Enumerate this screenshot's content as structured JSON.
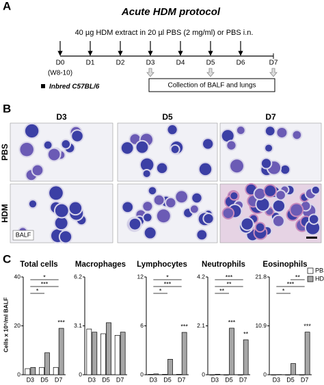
{
  "panels": {
    "a": "A",
    "b": "B",
    "c": "C"
  },
  "protocol": {
    "title": "Acute HDM protocol",
    "treatment": "40 µg HDM extract in 20 µl PBS (2 mg/ml) or PBS i.n.",
    "days": [
      "D0",
      "D1",
      "D2",
      "D3",
      "D4",
      "D5",
      "D6",
      "D7"
    ],
    "age": "(W8-10)",
    "strain": "Inbred C57BL/6",
    "collection": "Collection of BALF and lungs"
  },
  "micrographs": {
    "columns": [
      "D3",
      "D5",
      "D7"
    ],
    "rows": [
      "PBS",
      "HDM"
    ],
    "sample": "BALF"
  },
  "chart_y_label": "Cells x 10⁵/ml BALF",
  "chart_data": [
    {
      "type": "bar",
      "title": "Total cells",
      "categories": [
        "D3",
        "D5",
        "D7"
      ],
      "series": [
        {
          "name": "PBS",
          "color": "#ffffff",
          "values": [
            2.5,
            3,
            3
          ]
        },
        {
          "name": "HDM",
          "color": "#a6a6a6",
          "values": [
            3,
            9,
            19
          ]
        }
      ],
      "ylim": [
        0,
        40
      ],
      "yticks": [
        0,
        20,
        40
      ],
      "annotations": [
        {
          "label": "*",
          "from": "D3",
          "to": "D7"
        },
        {
          "label": "***",
          "from": "D3",
          "to": "D7"
        },
        {
          "label": "*",
          "from": "D3",
          "to": "D5"
        },
        {
          "label": "***",
          "on": "D7"
        }
      ]
    },
    {
      "type": "bar",
      "title": "Macrophages",
      "categories": [
        "D3",
        "D5",
        "D7"
      ],
      "series": [
        {
          "name": "PBS",
          "color": "#ffffff",
          "values": [
            2.9,
            2.6,
            2.5
          ]
        },
        {
          "name": "HDM",
          "color": "#a6a6a6",
          "values": [
            2.7,
            3.3,
            2.7
          ]
        }
      ],
      "ylim": [
        0,
        6.2
      ],
      "yticks": [
        0,
        3.1,
        6.2
      ],
      "annotations": []
    },
    {
      "type": "bar",
      "title": "Lymphocytes",
      "categories": [
        "D3",
        "D5",
        "D7"
      ],
      "series": [
        {
          "name": "PBS",
          "color": "#ffffff",
          "values": [
            0.05,
            0.05,
            0.05
          ]
        },
        {
          "name": "HDM",
          "color": "#a6a6a6",
          "values": [
            0.1,
            1.9,
            5.2
          ]
        }
      ],
      "ylim": [
        0,
        12
      ],
      "yticks": [
        0,
        6,
        12
      ],
      "annotations": [
        {
          "label": "*",
          "from": "D3",
          "to": "D7"
        },
        {
          "label": "***",
          "from": "D3",
          "to": "D7"
        },
        {
          "label": "*",
          "from": "D3",
          "to": "D5"
        },
        {
          "label": "***",
          "on": "D7"
        }
      ]
    },
    {
      "type": "bar",
      "title": "Neutrophils",
      "categories": [
        "D3",
        "D5",
        "D7"
      ],
      "series": [
        {
          "name": "PBS",
          "color": "#ffffff",
          "values": [
            0,
            0,
            0
          ]
        },
        {
          "name": "HDM",
          "color": "#a6a6a6",
          "values": [
            0.02,
            2,
            1.5
          ]
        }
      ],
      "ylim": [
        0,
        4.2
      ],
      "yticks": [
        0,
        2.1,
        4.2
      ],
      "annotations": [
        {
          "label": "***",
          "from": "D3",
          "to": "D7"
        },
        {
          "label": "**",
          "from": "D3",
          "to": "D7"
        },
        {
          "label": "**",
          "from": "D3",
          "to": "D5"
        },
        {
          "label": "***",
          "on": "D5"
        },
        {
          "label": "**",
          "on": "D7"
        }
      ]
    },
    {
      "type": "bar",
      "title": "Eosinophils",
      "categories": [
        "D3",
        "D5",
        "D7"
      ],
      "series": [
        {
          "name": "PBS",
          "color": "#ffffff",
          "values": [
            0,
            0,
            0
          ]
        },
        {
          "name": "HDM",
          "color": "#a6a6a6",
          "values": [
            0.05,
            2.5,
            9.5
          ]
        }
      ],
      "ylim": [
        0,
        21.8
      ],
      "yticks": [
        0,
        10.9,
        21.8
      ],
      "legend": "upper right",
      "annotations": [
        {
          "label": "**",
          "from": "D5",
          "to": "D7"
        },
        {
          "label": "***",
          "from": "D3",
          "to": "D7"
        },
        {
          "label": "*",
          "from": "D3",
          "to": "D5"
        },
        {
          "label": "***",
          "on": "D7"
        }
      ]
    }
  ]
}
